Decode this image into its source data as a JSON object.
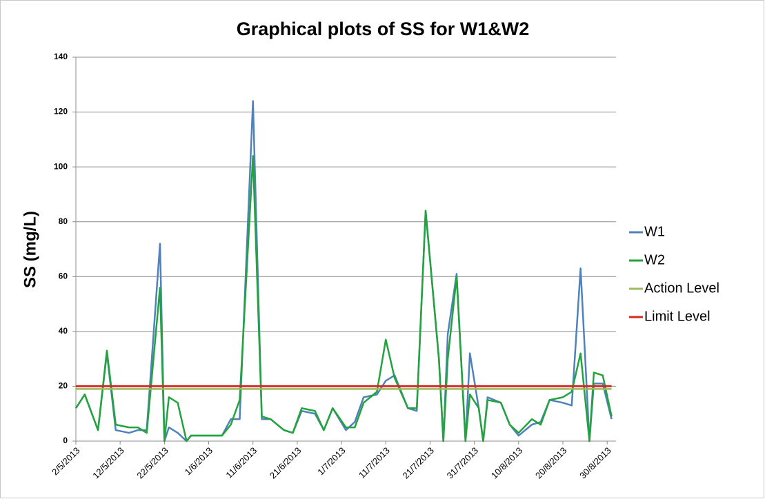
{
  "chart_data": {
    "type": "line",
    "title": "Graphical plots of SS for W1&W2",
    "y_label": "SS (mg/L)",
    "x": [
      "2013-05-02",
      "2013-05-04",
      "2013-05-07",
      "2013-05-09",
      "2013-05-11",
      "2013-05-14",
      "2013-05-16",
      "2013-05-18",
      "2013-05-21",
      "2013-05-22",
      "2013-05-23",
      "2013-05-25",
      "2013-05-27",
      "2013-05-28",
      "2013-06-01",
      "2013-06-04",
      "2013-06-06",
      "2013-06-08",
      "2013-06-11",
      "2013-06-13",
      "2013-06-15",
      "2013-06-18",
      "2013-06-20",
      "2013-06-22",
      "2013-06-25",
      "2013-06-27",
      "2013-06-29",
      "2013-07-02",
      "2013-07-04",
      "2013-07-06",
      "2013-07-09",
      "2013-07-11",
      "2013-07-13",
      "2013-07-16",
      "2013-07-18",
      "2013-07-20",
      "2013-07-23",
      "2013-07-24",
      "2013-07-25",
      "2013-07-27",
      "2013-07-29",
      "2013-07-30",
      "2013-08-01",
      "2013-08-02",
      "2013-08-03",
      "2013-08-06",
      "2013-08-08",
      "2013-08-10",
      "2013-08-13",
      "2013-08-15",
      "2013-08-17",
      "2013-08-20",
      "2013-08-22",
      "2013-08-24",
      "2013-08-26",
      "2013-08-27",
      "2013-08-29",
      "2013-08-31"
    ],
    "series": [
      {
        "name": "W1",
        "color": "#4f81bd",
        "values": [
          12,
          17,
          4,
          32,
          4,
          3,
          4,
          4,
          72,
          0,
          5,
          3,
          0,
          2,
          2,
          2,
          8,
          8,
          124,
          8,
          8,
          4,
          3,
          11,
          10,
          4,
          12,
          4,
          7,
          16,
          17,
          22,
          24,
          12,
          11,
          84,
          30,
          0,
          39,
          61,
          0,
          32,
          12,
          0,
          16,
          14,
          6,
          2,
          6,
          7,
          15,
          14,
          13,
          63,
          0,
          21,
          21,
          8
        ]
      },
      {
        "name": "W2",
        "color": "#22a33c",
        "values": [
          12,
          17,
          4,
          33,
          6,
          5,
          5,
          3,
          56,
          0,
          16,
          14,
          0,
          2,
          2,
          2,
          6,
          15,
          104,
          9,
          8,
          4,
          3,
          12,
          11,
          4,
          12,
          5,
          5,
          14,
          18,
          37,
          23,
          12,
          12,
          84,
          30,
          0,
          30,
          60,
          0,
          17,
          12,
          0,
          15,
          14,
          6,
          3,
          8,
          6,
          15,
          16,
          18,
          32,
          0,
          25,
          24,
          9
        ]
      },
      {
        "name": "Action Level",
        "color": "#9bbb59",
        "values": [
          19,
          19,
          19,
          19,
          19,
          19,
          19,
          19,
          19,
          19,
          19,
          19,
          19,
          19,
          19,
          19,
          19,
          19,
          19,
          19,
          19,
          19,
          19,
          19,
          19,
          19,
          19,
          19,
          19,
          19,
          19,
          19,
          19,
          19,
          19,
          19,
          19,
          19,
          19,
          19,
          19,
          19,
          19,
          19,
          19,
          19,
          19,
          19,
          19,
          19,
          19,
          19,
          19,
          19,
          19,
          19,
          19,
          19
        ]
      },
      {
        "name": "Limit Level",
        "color": "#d42a1f",
        "values": [
          20,
          20,
          20,
          20,
          20,
          20,
          20,
          20,
          20,
          20,
          20,
          20,
          20,
          20,
          20,
          20,
          20,
          20,
          20,
          20,
          20,
          20,
          20,
          20,
          20,
          20,
          20,
          20,
          20,
          20,
          20,
          20,
          20,
          20,
          20,
          20,
          20,
          20,
          20,
          20,
          20,
          20,
          20,
          20,
          20,
          20,
          20,
          20,
          20,
          20,
          20,
          20,
          20,
          20,
          20,
          20,
          20,
          20
        ]
      }
    ],
    "xlim": [
      "2013-05-02",
      "2013-09-01"
    ],
    "xticks": [
      {
        "value": "2013-05-02",
        "label": "2/5/2013"
      },
      {
        "value": "2013-05-12",
        "label": "12/5/2013"
      },
      {
        "value": "2013-05-22",
        "label": "22/5/2013"
      },
      {
        "value": "2013-06-01",
        "label": "1/6/2013"
      },
      {
        "value": "2013-06-11",
        "label": "11/6/2013"
      },
      {
        "value": "2013-06-21",
        "label": "21/6/2013"
      },
      {
        "value": "2013-07-01",
        "label": "1/7/2013"
      },
      {
        "value": "2013-07-11",
        "label": "11/7/2013"
      },
      {
        "value": "2013-07-21",
        "label": "21/7/2013"
      },
      {
        "value": "2013-07-31",
        "label": "31/7/2013"
      },
      {
        "value": "2013-08-10",
        "label": "10/8/2013"
      },
      {
        "value": "2013-08-20",
        "label": "20/8/2013"
      },
      {
        "value": "2013-08-30",
        "label": "30/8/2013"
      }
    ],
    "ylim": [
      0,
      140
    ],
    "yticks": [
      0,
      20,
      40,
      60,
      80,
      100,
      120,
      140
    ],
    "grid": true,
    "legend": "right"
  }
}
